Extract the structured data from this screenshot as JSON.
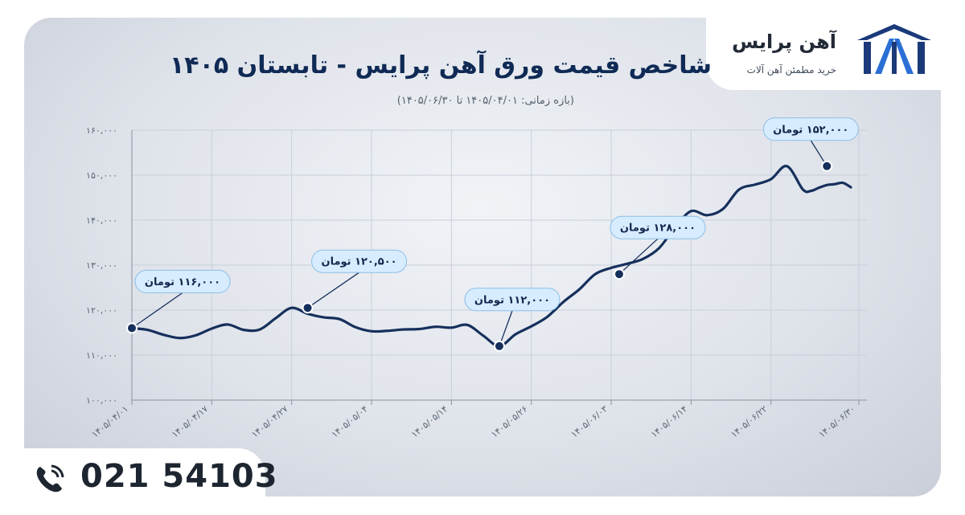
{
  "brand": {
    "name": "آهن پرایس",
    "tagline": "خرید مطمئن آهن آلات"
  },
  "contact": {
    "phone": "021 54103"
  },
  "colors": {
    "line": "#16305c",
    "label_bg": "#d7ecff",
    "label_border": "#8bbfe6",
    "grid": "#c8cfdb",
    "title": "#0f2a55"
  },
  "icons": {
    "phone": "phone-icon",
    "logo": "brand-logo-icon"
  },
  "chart_data": {
    "type": "line",
    "title": "شاخص قیمت ورق آهن پرایس - تابستان ۱۴۰۵",
    "subtitle": "(بازه زمانی: ۱۴۰۵/۰۴/۰۱ تا ۱۴۰۵/۰۶/۳۰)",
    "xlabel": "",
    "ylabel": "",
    "ylim": [
      100000,
      160000
    ],
    "yticks": [
      100000,
      110000,
      120000,
      130000,
      140000,
      150000,
      160000
    ],
    "ytick_labels": [
      "۱۰۰,۰۰۰",
      "۱۱۰,۰۰۰",
      "۱۲۰,۰۰۰",
      "۱۳۰,۰۰۰",
      "۱۴۰,۰۰۰",
      "۱۵۰,۰۰۰",
      "۱۶۰,۰۰۰"
    ],
    "xlim": [
      0,
      91
    ],
    "xticks": [
      0,
      10,
      20,
      30,
      40,
      50,
      60,
      70,
      80,
      91
    ],
    "xtick_labels": [
      "۱۴۰۵/۰۴/۰۱",
      "۱۴۰۵/۰۴/۱۷",
      "۱۴۰۵/۰۴/۲۷",
      "۱۴۰۵/۰۵/۰۴",
      "۱۴۰۵/۰۵/۱۴",
      "۱۴۰۵/۰۵/۲۶",
      "۱۴۰۵/۰۶/۰۳",
      "۱۴۰۵/۰۶/۱۴",
      "۱۴۰۵/۰۶/۲۲",
      "۱۴۰۵/۰۶/۳۰"
    ],
    "grid": true,
    "series": [
      {
        "x": [
          0,
          2,
          4,
          6,
          8,
          10,
          12,
          14,
          16,
          18,
          20,
          22,
          24,
          26,
          28,
          30,
          32,
          34,
          36,
          38,
          40,
          42,
          44,
          46,
          48,
          50,
          52,
          54,
          56,
          58,
          60,
          62,
          64,
          66,
          68,
          70,
          72,
          74,
          76,
          78,
          80,
          82,
          84,
          85,
          86,
          87,
          88,
          89,
          90
        ],
        "values": [
          116000,
          115600,
          114500,
          113800,
          114400,
          115900,
          116800,
          115600,
          115700,
          118200,
          120500,
          119200,
          118400,
          118000,
          116200,
          115300,
          115400,
          115700,
          115800,
          116300,
          116100,
          116700,
          114300,
          112000,
          114600,
          116400,
          118500,
          121800,
          124600,
          128000,
          129400,
          130300,
          131400,
          133800,
          138400,
          142000,
          141100,
          142500,
          146800,
          147900,
          149100,
          152000,
          146800,
          146500,
          147200,
          147800,
          148000,
          148300,
          147300
        ]
      }
    ],
    "annotations": [
      {
        "x": 0,
        "value": 116000,
        "label": "۱۱۶,۰۰۰  تومان"
      },
      {
        "x": 22,
        "value": 120500,
        "label": "۱۲۰,۵۰۰  تومان"
      },
      {
        "x": 46,
        "value": 112000,
        "label": "۱۱۲,۰۰۰  تومان"
      },
      {
        "x": 61,
        "value": 128000,
        "label": "۱۲۸,۰۰۰  تومان"
      },
      {
        "x": 87,
        "value": 152000,
        "label": "۱۵۲,۰۰۰  تومان"
      }
    ]
  }
}
